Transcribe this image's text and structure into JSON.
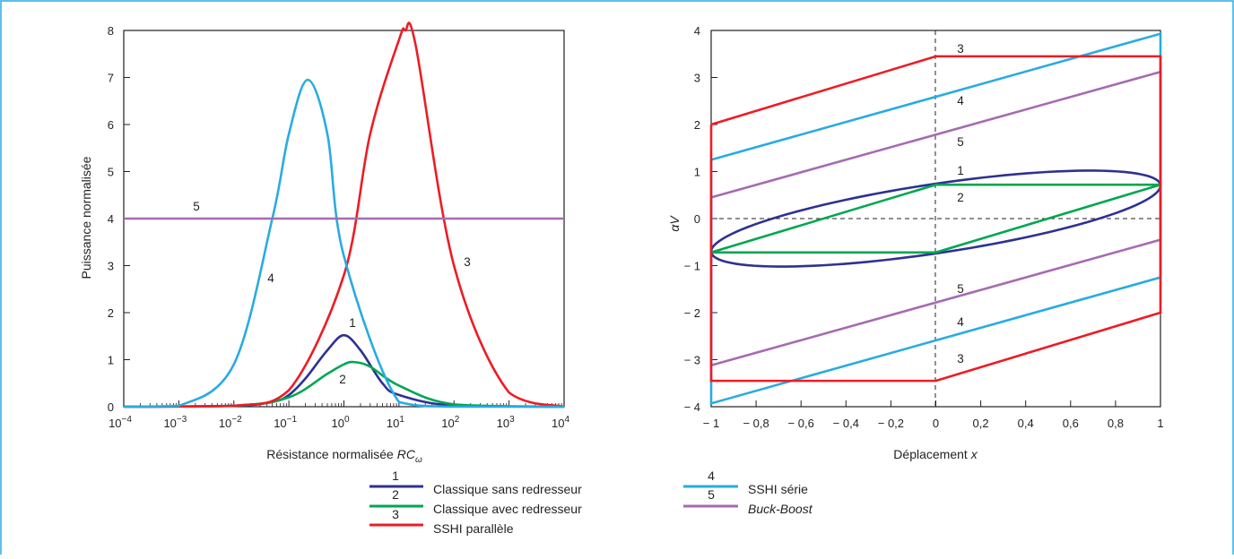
{
  "colors": {
    "frame": "#29abe2",
    "curve1": "#2e3192",
    "curve2": "#00a651",
    "curve3": "#ed1c24",
    "curve4": "#29abe2",
    "curve5": "#a66bb1",
    "axis": "#231f20"
  },
  "left": {
    "ylabel": "Puissance normalisée",
    "xlabel_main": "Résistance normalisée ",
    "xlabel_var": "RC",
    "xlabel_sub": "ω",
    "xtick_exponents": [
      "−4",
      "−3",
      "−2",
      "−1",
      "0",
      "1",
      "2",
      "3",
      "4"
    ],
    "xtick_base": "10",
    "ytick_labels": [
      "0",
      "1",
      "2",
      "3",
      "4",
      "5",
      "6",
      "7",
      "8"
    ],
    "curve_labels": [
      "1",
      "2",
      "3",
      "4",
      "5"
    ]
  },
  "right": {
    "ylabel": "αV",
    "xlabel_main": "Déplacement ",
    "xlabel_var": "x",
    "xtick_labels": [
      "− 1",
      "− 0,8",
      "− 0,6",
      "− 0,4",
      "− 0,2",
      "0",
      "0,2",
      "0,4",
      "0,6",
      "0,8",
      "1"
    ],
    "ytick_labels": [
      "− 4",
      "− 3",
      "− 2",
      "− 1",
      "0",
      "1",
      "2",
      "3",
      "4"
    ],
    "curve_labels": [
      "3",
      "4",
      "5",
      "1",
      "2",
      "5",
      "4",
      "3"
    ]
  },
  "legend": [
    {
      "num": "1",
      "label": "Classique sans redresseur",
      "italic": false
    },
    {
      "num": "2",
      "label": "Classique avec redresseur",
      "italic": false
    },
    {
      "num": "3",
      "label": "SSHI parallèle",
      "italic": false
    },
    {
      "num": "4",
      "label": "SSHI série",
      "italic": false
    },
    {
      "num": "5",
      "label": "Buck-Boost",
      "italic": true
    }
  ],
  "chart_data": [
    {
      "type": "line",
      "xlabel": "Résistance normalisée RCω",
      "ylabel": "Puissance normalisée",
      "xscale": "log",
      "xlim": [
        0.0001,
        10000
      ],
      "ylim": [
        0,
        8
      ],
      "grid": false,
      "series": [
        {
          "name": "Classique sans redresseur",
          "x": [
            0.0001,
            0.01,
            0.05,
            0.1,
            0.2,
            0.5,
            1,
            2,
            5,
            10,
            100,
            10000
          ],
          "y": [
            0,
            0.02,
            0.1,
            0.25,
            0.6,
            1.2,
            1.52,
            1.2,
            0.5,
            0.25,
            0.02,
            0
          ]
        },
        {
          "name": "Classique avec redresseur",
          "x": [
            0.0001,
            0.01,
            0.1,
            0.5,
            1,
            1.5,
            3,
            10,
            100,
            10000
          ],
          "y": [
            0,
            0.02,
            0.2,
            0.7,
            0.9,
            0.95,
            0.85,
            0.45,
            0.05,
            0
          ]
        },
        {
          "name": "SSHI parallèle",
          "x": [
            0.0001,
            0.01,
            0.1,
            1,
            3,
            10,
            13,
            20,
            100,
            1000,
            10000
          ],
          "y": [
            0,
            0.02,
            0.35,
            2.8,
            5.8,
            7.8,
            8.0,
            7.7,
            3.0,
            0.3,
            0
          ]
        },
        {
          "name": "SSHI série",
          "x": [
            0.0001,
            0.001,
            0.01,
            0.05,
            0.1,
            0.22,
            0.5,
            1,
            10,
            100,
            10000
          ],
          "y": [
            0,
            0.02,
            0.9,
            4.0,
            5.8,
            6.95,
            5.8,
            3.2,
            0.1,
            0,
            0
          ]
        },
        {
          "name": "Buck-Boost",
          "x": [
            0.0001,
            10000
          ],
          "y": [
            4,
            4
          ]
        }
      ]
    },
    {
      "type": "line",
      "xlabel": "Déplacement x",
      "ylabel": "αV",
      "xlim": [
        -1,
        1
      ],
      "ylim": [
        -4,
        4
      ],
      "grid": false,
      "series": [
        {
          "name": "Classique sans redresseur",
          "shape": "ellipse",
          "x": [
            -1,
            -0.65,
            0,
            0.65,
            1,
            0.65,
            0,
            -0.65,
            -1
          ],
          "y": [
            -0.7,
            0.0,
            0.75,
            1.02,
            0.7,
            0.0,
            -0.75,
            -1.02,
            -0.7
          ]
        },
        {
          "name": "Classique avec redresseur",
          "x": [
            -1,
            0,
            1,
            1,
            0,
            -1,
            -1
          ],
          "y": [
            -0.72,
            0.72,
            0.72,
            0.72,
            -0.72,
            -0.72,
            -0.72
          ]
        },
        {
          "name": "SSHI parallèle",
          "x": [
            -1,
            0,
            1,
            1,
            0,
            -1,
            -1
          ],
          "y": [
            2.0,
            3.45,
            3.45,
            -2.0,
            -3.45,
            -3.45,
            2.0
          ]
        },
        {
          "name": "SSHI série",
          "x": [
            -1,
            1,
            1,
            -1,
            -1
          ],
          "y": [
            1.25,
            3.93,
            -1.25,
            -3.93,
            1.25
          ]
        },
        {
          "name": "Buck-Boost",
          "x": [
            -1,
            1,
            1,
            -1,
            -1
          ],
          "y": [
            0.45,
            3.12,
            -0.45,
            -3.12,
            0.45
          ]
        }
      ]
    }
  ]
}
